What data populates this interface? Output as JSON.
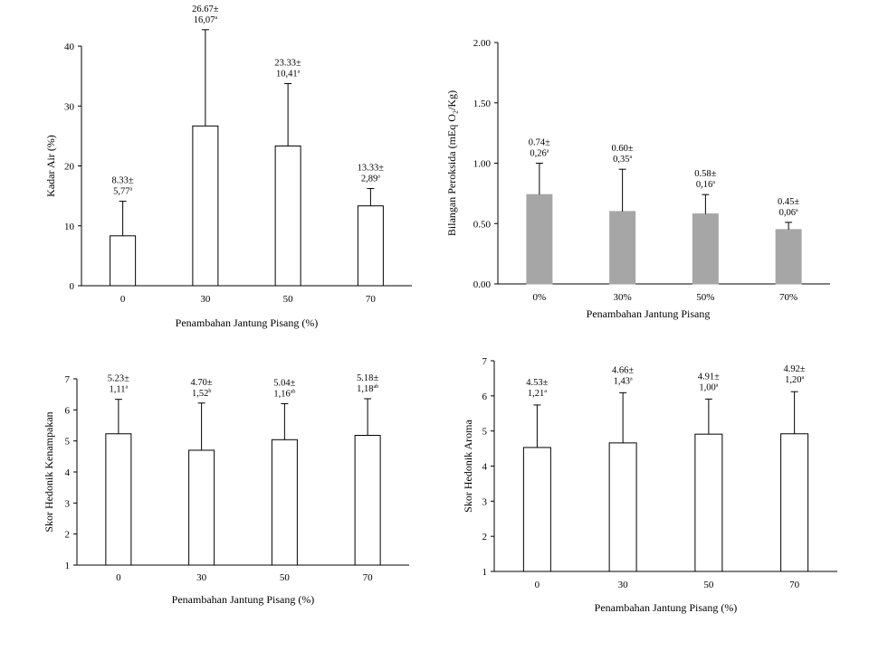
{
  "chart_data": [
    {
      "type": "bar",
      "categories": [
        "0",
        "30",
        "50",
        "70"
      ],
      "values": [
        8.33,
        26.67,
        23.33,
        13.33
      ],
      "errors": [
        5.77,
        16.07,
        10.41,
        2.89
      ],
      "label_value": [
        "8.33±",
        "26.67±",
        "23.33±",
        "13.33±"
      ],
      "label_sd": [
        "5,77",
        "16,07",
        "10,41",
        "2,89"
      ],
      "label_sup": [
        "a",
        "a",
        "a",
        "a"
      ],
      "xlabel": "Penambahan Jantung Pisang (%)",
      "ylabel": "Kadar Air (%)",
      "ylim": [
        0,
        40
      ],
      "yticks": [
        "0",
        "10",
        "20",
        "30",
        "40"
      ],
      "bar_color": "#ffffff",
      "bar_stroke": "#000000"
    },
    {
      "type": "bar",
      "categories": [
        "0%",
        "30%",
        "50%",
        "70%"
      ],
      "values": [
        0.74,
        0.6,
        0.58,
        0.45
      ],
      "errors": [
        0.26,
        0.35,
        0.16,
        0.06
      ],
      "label_value": [
        "0.74±",
        "0.60±",
        "0.58±",
        "0.45±"
      ],
      "label_sd": [
        "0,26",
        "0,35",
        "0,16",
        "0,06"
      ],
      "label_sup": [
        "a",
        "a",
        "a",
        "a"
      ],
      "xlabel": "Penambahan Jantung Pisang",
      "ylabel": "Bilangan Peroksida (mEq O₂/Kg)",
      "ylim": [
        0,
        2
      ],
      "yticks": [
        "0.00",
        "0.50",
        "1.00",
        "1.50",
        "2.00"
      ],
      "bar_color": "#a6a6a6",
      "bar_stroke": "#a6a6a6"
    },
    {
      "type": "bar",
      "categories": [
        "0",
        "30",
        "50",
        "70"
      ],
      "values": [
        5.23,
        4.7,
        5.04,
        5.18
      ],
      "errors": [
        1.11,
        1.52,
        1.16,
        1.18
      ],
      "label_value": [
        "5.23±",
        "4.70±",
        "5.04±",
        "5.18±"
      ],
      "label_sd": [
        "1,11",
        "1,52",
        "1,16",
        "1,18"
      ],
      "label_sup": [
        "a",
        "b",
        "ab",
        "ab"
      ],
      "xlabel": "Penambahan Jantung Pisang (%)",
      "ylabel": "Skor Hedonik Kenampakan",
      "ylim": [
        1,
        7
      ],
      "yticks": [
        "1",
        "2",
        "3",
        "4",
        "5",
        "6",
        "7"
      ],
      "bar_color": "#ffffff",
      "bar_stroke": "#000000"
    },
    {
      "type": "bar",
      "categories": [
        "0",
        "30",
        "50",
        "70"
      ],
      "values": [
        4.53,
        4.66,
        4.91,
        4.92
      ],
      "errors": [
        1.21,
        1.43,
        1.0,
        1.2
      ],
      "label_value": [
        "4.53±",
        "4.66±",
        "4.91±",
        "4.92±"
      ],
      "label_sd": [
        "1,21",
        "1,43",
        "1,00",
        "1,20"
      ],
      "label_sup": [
        "a",
        "a",
        "a",
        "a"
      ],
      "xlabel": "Penambahan Jantung Pisang (%)",
      "ylabel": "Skor Hedonik Aroma",
      "ylim": [
        1,
        7
      ],
      "yticks": [
        "1",
        "2",
        "3",
        "4",
        "5",
        "6",
        "7"
      ],
      "bar_color": "#ffffff",
      "bar_stroke": "#000000"
    }
  ]
}
